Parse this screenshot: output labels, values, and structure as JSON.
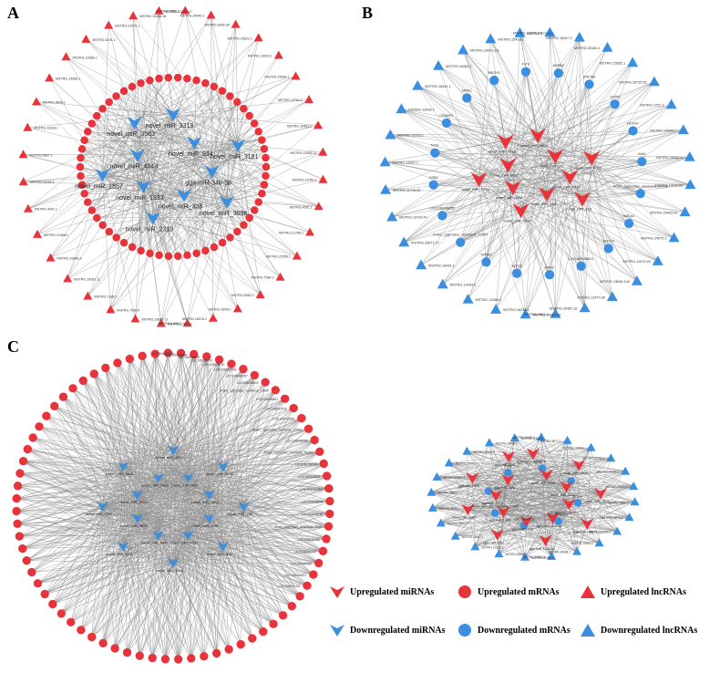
{
  "panels": {
    "a": {
      "letter": "A",
      "center_nodes": [
        "novel_miR_3313",
        "novel_miR_934",
        "novel_miR_3181",
        "gga-miR-34b-5p",
        "novel_miR_3698",
        "novel_miR_336",
        "novel_miR_2313",
        "novel_miR_1333",
        "novel_miR_1857",
        "novel_miR_4043",
        "novel_miR_3563"
      ],
      "center_type": "down-mirna",
      "ring1_type": "up-mrna",
      "ring2_type": "up-lncrna",
      "ring2_labels": [
        "MSTRG.1936.1",
        "MSTRG.24646.1",
        "MSTRG.9836.38",
        "MSTRG.25622.1",
        "MSTRG.18432.1",
        "MSTRG.25364.1",
        "MSTRG.13764.2",
        "MSTRG.16481.1",
        "MSTRG.19355.11",
        "MSTRG.11050.1",
        "MSTRG.4561.1",
        "MSTRG.21788.1",
        "MSTRG.22058.1",
        "MSTRG.7584.3",
        "MSTRG.5582.2",
        "MSTRG.8290.1",
        "MSTRG.16576.1",
        "MSTRG.1448.1",
        "MSTRG.17578.1",
        "MSTRG.16687.13",
        "MSTRG.7596.4",
        "MSTRG.7188.1",
        "MSTRG.19187.11",
        "MSTRG.16848.3",
        "MSTRG.21068.1",
        "MSTRG.4441.1",
        "MSTRG.12053.1",
        "MSTRG.6587.1",
        "MSTRG.11018.1",
        "MSTRG.4646.1",
        "MSTRG.13968.1",
        "MSTRG.12086.1",
        "MSTRG.8376.1",
        "MSTRG.21075.1",
        "MSTRG.12446.18",
        "MSTRG.13727.17"
      ]
    },
    "b": {
      "letter": "B",
      "center_nodes": [
        "novel_miR_1426",
        "novel_miR_332",
        "novel_miR_4002",
        "novel_miR_2316",
        "novel_miR_713",
        "novel_miR_188",
        "novel_miR_1024",
        "novel_miR_1102",
        "novel_miR_1733",
        "novel_miR_3037",
        "novel_miR_2512"
      ],
      "center_type": "up-mirna",
      "ring1_type": "down-mrna",
      "ring2_type": "down-lncrna",
      "ring2_labels": [
        "MSTRG.10230.170",
        "MSTRG.16947.1",
        "MSTRG.25164.1",
        "MSTRG.25562.1",
        "MSTRG.16725.51",
        "MSTRG.1252.2",
        "MSTRG.13644.7",
        "MSTRG.18551.1",
        "MSTRG.13720.52",
        "MSTRG.25403.84",
        "MSTRG.24675.1",
        "MSTRG.11670.26",
        "MSTRG.13636.134",
        "MSTRG.11570.26",
        "MSTRG.26482.32",
        "MSTRG.4024.1",
        "MSTRG.25066.64",
        "MSTRG.16336.1",
        "MSTRG.13488.2",
        "MSTRG.13494.2",
        "MSTRG.18433.1",
        "MSTRG.25871.27",
        "MSTRG.13726.40",
        "MSTRG.11728.50",
        "MSTRG.13257.1",
        "MSTRG.12063.1",
        "MSTRG.10606.1",
        "MSTRG.18441.1",
        "MSTRG.16084.1",
        "MSTRG.18411.111",
        "MSTRG.15418.1",
        "MSTRG.17272.1"
      ],
      "inner_labels": [
        "ADRB2",
        "ZNF784",
        "OSTN",
        "HOXA7",
        "AMH",
        "Anser_cygnoides_newGene_20198",
        "ABCA4",
        "SOX14",
        "LOC106038613",
        "PAK3",
        "KLF15",
        "SFRP2",
        "Anser_cygnoides_newGene_12504",
        "LOC106038059",
        "ASB5",
        "NOG",
        "CRABP1",
        "MNX1",
        "MEOX2",
        "FLT4"
      ]
    },
    "c": {
      "letter": "C",
      "center_nodes": [
        "novel_miR_4874",
        "novel_miR_934",
        "novel_miR_3001",
        "novel_miR_4812",
        "novel_miR_788",
        "novel_miR_4760",
        "novel_miR_336",
        "novel_miR_4031",
        "novel_miR_1060",
        "novel_miR_4043",
        "novel_miR_1118",
        "novel_miR_3509",
        "novel_miR_1300",
        "novel_miR_2020",
        "novel_miR_3548",
        "novel_miR_3564"
      ],
      "center_type": "down-mirna",
      "ring1_type": "up-mrna",
      "ring_labels": [
        "LOC106048722",
        "LOC106030964",
        "LOC106034560",
        "LOC106036409",
        "LOC106028740",
        "LOC106043593",
        "LOC106040057",
        "LOC106049692",
        "Anser_cygnoides_newGene_11889",
        "LOC106044481",
        "LOC106047226",
        "LOC106040342",
        "Anser_cygnoides_newGene_17800",
        "LOC106045590",
        "Anser_cygnoides_newGene_41815",
        "LOC106036045",
        "LOC106048453",
        "LOC106031462",
        "LOC106028094",
        "LOC106043116",
        "Anser_cygnoides_newGene_2035",
        "LOC106045233",
        "LOC106046247",
        "LOC106044060",
        "LOC106044527",
        "LOC106032441"
      ]
    },
    "d": {
      "center_nodes": [
        "gga-miR-1788-3p",
        "novel_miR_3300",
        "novel_miR_2809",
        "novel_miR_1033",
        "novel_miR_3001",
        "gga-miR-1184",
        "gga-miR-1354",
        "gga-miR-1328-3p",
        "gga-miR-133a-3p",
        "gga-miR-1569",
        "gga-miR-3552",
        "gga-miR-1424",
        "novel_miR_2313",
        "gga-miR-1574",
        "gga-miR-1638",
        "gga-miR-1328",
        "gga-miR-1335"
      ],
      "center_type": "up-mirna",
      "inner_labels": [
        "MLPH",
        "AGT",
        "SOX10",
        "LOC106032060",
        "LOC106044608",
        "Anser_cygnoides_newGene_11048",
        "NOG",
        "KRT5"
      ],
      "ring2_type": "down-lncrna",
      "ring2_labels": [
        "MSTRG.19420.1",
        "MSTRG.8671.1",
        "MSTRG.19668.1",
        "MSTRG.15056.2",
        "MSTRG.20089.1",
        "MSTRG.12640.1",
        "MSTRG.8886.2",
        "MSTRG.15878.9",
        "MSTRG.20204.1",
        "MSTRG.12544.2",
        "MSTRG.18408.1",
        "MSTRG.19050.1",
        "MSTRG.15754.1",
        "MSTRG.6526.1",
        "MSTRG.19158.1",
        "MSTRG.18467.1",
        "MSTRG.15521.1",
        "MSTRG.2023.1",
        "MSTRG.15813.1",
        "MSTRG.20620.1",
        "MSTRG.19028.1",
        "MSTRG.20620.3",
        "MSTRG.19058.1",
        "MSTRG.12640.3"
      ]
    }
  },
  "legend": [
    {
      "symbol": "up-mirna",
      "label": "Upregulated miRNAs"
    },
    {
      "symbol": "up-mrna",
      "label": "Upregulated mRNAs"
    },
    {
      "symbol": "up-lncrna",
      "label": "Upregulated lncRNAs"
    },
    {
      "symbol": "down-mirna",
      "label": "Downregulated miRNAs"
    },
    {
      "symbol": "down-mrna",
      "label": "Downregulated mRNAs"
    },
    {
      "symbol": "down-lncrna",
      "label": "Downregulated lncRNAs"
    }
  ],
  "colors": {
    "up": "#e8333a",
    "down": "#3a8fe0",
    "edge": "#8a8a8a"
  }
}
